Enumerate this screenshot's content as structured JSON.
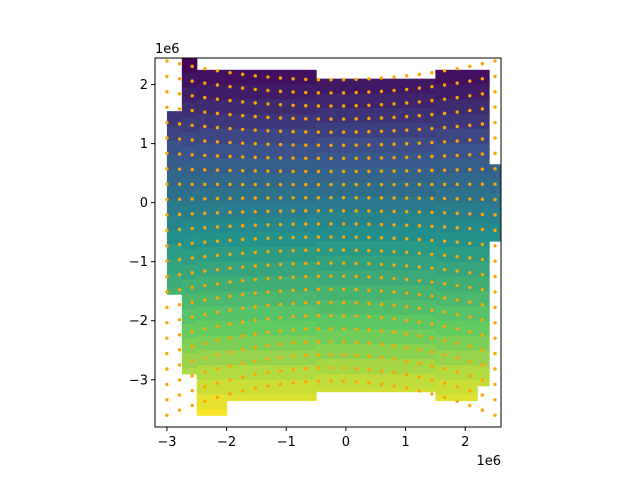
{
  "chart_data": {
    "type": "heatmap",
    "title": "",
    "xlabel": "",
    "ylabel": "",
    "x_offset_label": "1e6",
    "y_offset_label": "1e6",
    "xlim": [
      -3.2,
      2.6
    ],
    "ylim": [
      -3.8,
      2.45
    ],
    "x_ticks": [
      -3,
      -2,
      -1,
      0,
      1,
      2
    ],
    "y_ticks": [
      -3,
      -2,
      -1,
      0,
      1,
      2
    ],
    "x_tick_labels": [
      "−3",
      "−2",
      "−1",
      "0",
      "1",
      "2"
    ],
    "y_tick_labels": [
      "−3",
      "−2",
      "−1",
      "0",
      "1",
      "2"
    ],
    "grid": false,
    "colormap": "viridis",
    "color_range": [
      -3.6,
      2.4
    ],
    "grid_step": 0.25,
    "mesh_columns": [
      {
        "x0": -3.0,
        "x1": -2.75,
        "ymin": -1.55,
        "ymax": 1.55
      },
      {
        "x0": -2.75,
        "x1": -2.5,
        "ymin": -2.9,
        "ymax": 2.45
      },
      {
        "x0": -2.5,
        "x1": -2.25,
        "ymin": -3.6,
        "ymax": 2.25
      },
      {
        "x0": -2.25,
        "x1": -2.0,
        "ymin": -3.6,
        "ymax": 2.25
      },
      {
        "x0": -2.0,
        "x1": -1.75,
        "ymin": -3.35,
        "ymax": 2.25
      },
      {
        "x0": -1.75,
        "x1": -0.5,
        "ymin": -3.35,
        "ymax": 2.25
      },
      {
        "x0": -0.5,
        "x1": 1.5,
        "ymin": -3.2,
        "ymax": 2.1
      },
      {
        "x0": 1.5,
        "x1": 2.2,
        "ymin": -3.35,
        "ymax": 2.25
      },
      {
        "x0": 2.2,
        "x1": 2.4,
        "ymin": -3.1,
        "ymax": 2.25
      },
      {
        "x0": 2.4,
        "x1": 2.6,
        "ymin": -0.65,
        "ymax": 0.65
      }
    ],
    "point_series": {
      "name": "",
      "color": "#ffa500",
      "columns": 27,
      "rows": 24,
      "x_start": -3.0,
      "x_end": 2.5,
      "top": {
        "y_center": 2.08,
        "y_edge": 2.4
      },
      "bottom": {
        "y_center": -3.02,
        "y_edge": -3.6
      }
    }
  }
}
